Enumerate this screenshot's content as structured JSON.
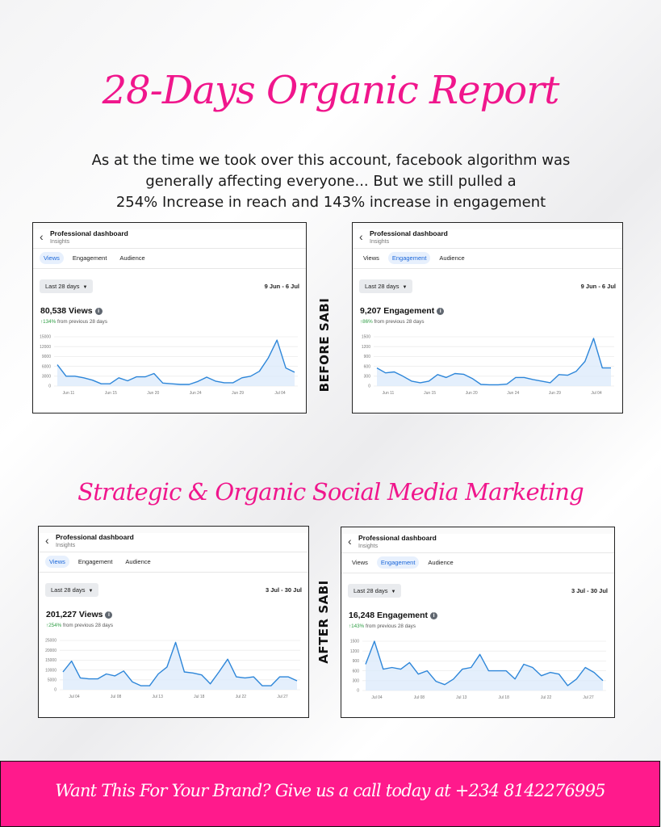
{
  "title": "28-Days Organic Report",
  "intro": {
    "line1": "As at the time we took over this account, facebook algorithm was",
    "line2": "generally affecting everyone... But we still pulled a",
    "line3": "254% Increase in reach and 143% increase in engagement"
  },
  "subtitle": "Strategic & Organic Social Media Marketing",
  "labels": {
    "before": "BEFORE SABI",
    "after": "AFTER SABI"
  },
  "cta": "Want This For Your Brand? Give us a call today at +234 8142276995",
  "icons": {
    "back": "chevron-left-icon",
    "info": "info-icon",
    "dropdown": "caret-down-icon"
  },
  "colors": {
    "brand_pink": "#f0168c",
    "cta_bg": "#ff1a8c",
    "chart_line": "#2d86d9",
    "chart_fill": "#dbeafb",
    "active_tab_bg": "#e7f0fd",
    "active_tab_text": "#1a66d9",
    "positive": "#2e9e44"
  },
  "panels": [
    {
      "id": "p1",
      "header_title": "Professional dashboard",
      "header_sub": "Insights",
      "tabs": [
        "Views",
        "Engagement",
        "Audience"
      ],
      "active_tab": 0,
      "dropdown": "Last 28 days",
      "range": "9 Jun - 6 Jul",
      "metric": "80,538 Views",
      "delta_pct": "↑134%",
      "delta_text": " from previous 28 days",
      "chart_data": {
        "type": "area",
        "y_ticks": [
          "15000",
          "12000",
          "9000",
          "6000",
          "3000",
          "0"
        ],
        "ylim": [
          0,
          15000
        ],
        "x_ticks": [
          "Jun 11",
          "Jun 15",
          "Jun 20",
          "Jun 24",
          "Jun 29",
          "Jul 04"
        ],
        "values": [
          6500,
          3000,
          3000,
          2500,
          1800,
          700,
          700,
          2500,
          1600,
          2800,
          2800,
          3800,
          900,
          700,
          500,
          500,
          1400,
          2700,
          1500,
          1000,
          1000,
          2500,
          3000,
          4500,
          8500,
          14000,
          5500,
          4200
        ]
      }
    },
    {
      "id": "p2",
      "header_title": "Professional dashboard",
      "header_sub": "Insights",
      "tabs": [
        "Views",
        "Engagement",
        "Audience"
      ],
      "active_tab": 1,
      "dropdown": "Last 28 days",
      "range": "9 Jun - 6 Jul",
      "metric": "9,207 Engagement",
      "delta_pct": "↑86%",
      "delta_text": " from previous 28 days",
      "chart_data": {
        "type": "area",
        "y_ticks": [
          "1500",
          "1200",
          "900",
          "600",
          "300",
          "0"
        ],
        "ylim": [
          0,
          1500
        ],
        "x_ticks": [
          "Jun 11",
          "Jun 15",
          "Jun 20",
          "Jun 24",
          "Jun 29",
          "Jul 04"
        ],
        "values": [
          550,
          400,
          430,
          300,
          150,
          100,
          150,
          350,
          260,
          380,
          360,
          230,
          50,
          40,
          40,
          60,
          260,
          260,
          200,
          150,
          100,
          350,
          330,
          450,
          750,
          1450,
          550,
          550
        ]
      }
    },
    {
      "id": "p3",
      "header_title": "Professional dashboard",
      "header_sub": "Insights",
      "tabs": [
        "Views",
        "Engagement",
        "Audience"
      ],
      "active_tab": 0,
      "dropdown": "Last 28 days",
      "range": "3 Jul - 30 Jul",
      "metric": "201,227 Views",
      "delta_pct": "↑254%",
      "delta_text": " from previous 28 days",
      "chart_data": {
        "type": "area",
        "y_ticks": [
          "25000",
          "20000",
          "15000",
          "10000",
          "5000",
          "0"
        ],
        "ylim": [
          0,
          25000
        ],
        "x_ticks": [
          "Jul 04",
          "Jul 08",
          "Jul 13",
          "Jul 18",
          "Jul 22",
          "Jul 27"
        ],
        "values": [
          9000,
          14500,
          6000,
          5500,
          5500,
          8000,
          7000,
          9500,
          4000,
          2000,
          2000,
          8000,
          11500,
          24000,
          9000,
          8500,
          7500,
          3000,
          9000,
          15500,
          6500,
          6000,
          6500,
          2000,
          2000,
          6500,
          6500,
          4500
        ]
      }
    },
    {
      "id": "p4",
      "header_title": "Professional dashboard",
      "header_sub": "Insights",
      "tabs": [
        "Views",
        "Engagement",
        "Audience"
      ],
      "active_tab": 1,
      "dropdown": "Last 28 days",
      "range": "3 Jul - 30 Jul",
      "metric": "16,248 Engagement",
      "delta_pct": "↑143%",
      "delta_text": " from previous 28 days",
      "chart_data": {
        "type": "area",
        "y_ticks": [
          "1500",
          "1200",
          "900",
          "600",
          "300",
          "0"
        ],
        "ylim": [
          0,
          1500
        ],
        "x_ticks": [
          "Jul 04",
          "Jul 08",
          "Jul 13",
          "Jul 18",
          "Jul 22",
          "Jul 27"
        ],
        "values": [
          800,
          1500,
          650,
          700,
          650,
          850,
          500,
          600,
          280,
          180,
          350,
          650,
          700,
          1100,
          600,
          600,
          600,
          350,
          800,
          700,
          450,
          550,
          500,
          150,
          350,
          700,
          550,
          300
        ]
      }
    }
  ]
}
